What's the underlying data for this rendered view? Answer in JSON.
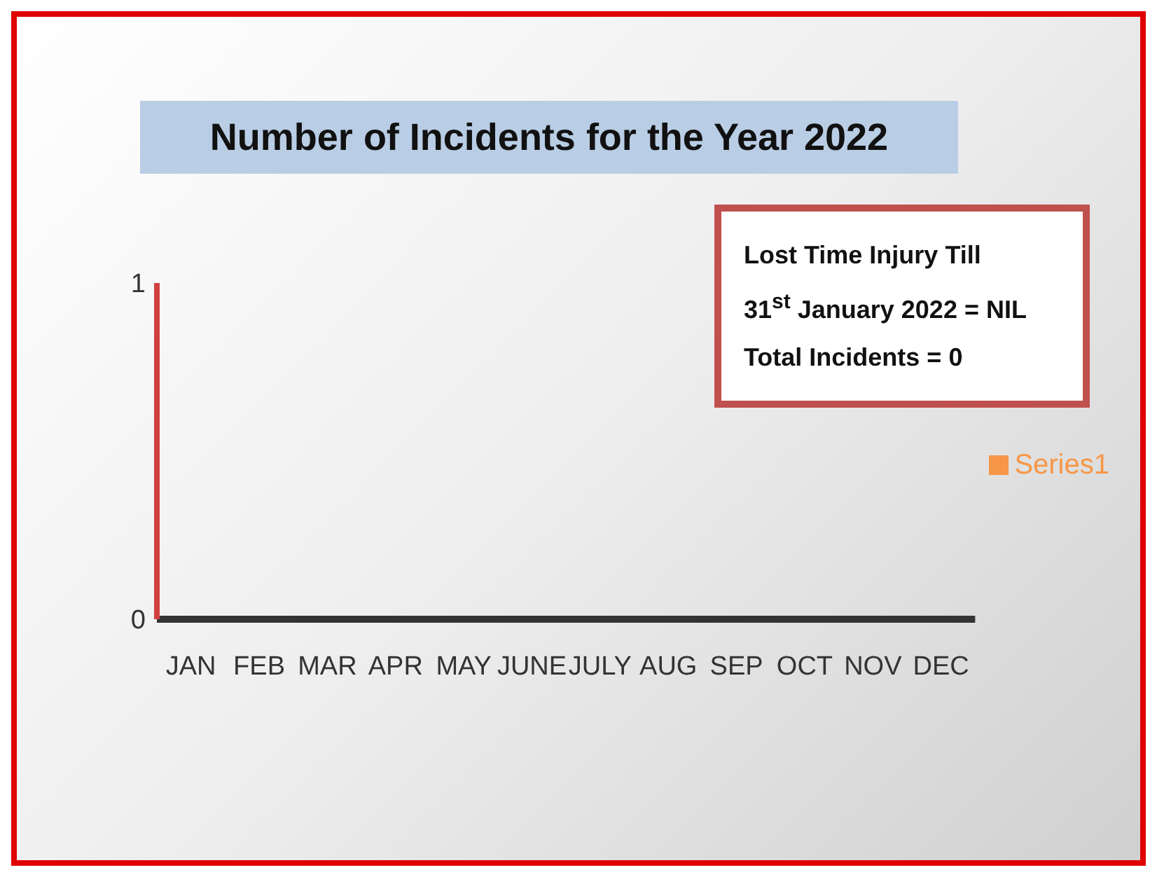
{
  "chart_data": {
    "type": "bar",
    "title": "Number of Incidents for the Year 2022",
    "categories": [
      "JAN",
      "FEB",
      "MAR",
      "APR",
      "MAY",
      "JUNE",
      "JULY",
      "AUG",
      "SEP",
      "OCT",
      "NOV",
      "DEC"
    ],
    "series": [
      {
        "name": "Series1",
        "color": "#f79646",
        "values": [
          0,
          0,
          0,
          0,
          0,
          0,
          0,
          0,
          0,
          0,
          0,
          0
        ]
      }
    ],
    "ylim": [
      0,
      1
    ],
    "yticks": [
      0,
      1
    ],
    "legend": "right",
    "annotations": [
      "Lost Time Injury Till",
      "31$^{st}$ January 2022 = NIL",
      "Total Incidents  = 0"
    ]
  }
}
